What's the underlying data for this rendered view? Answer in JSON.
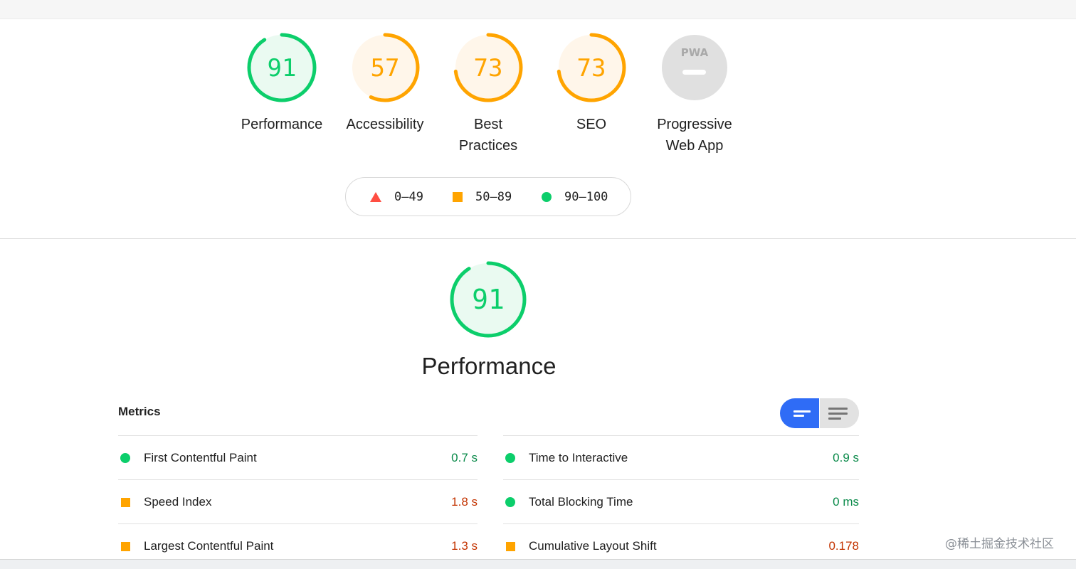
{
  "categories": [
    {
      "id": "performance",
      "score": 91,
      "label": "Performance",
      "rating": "pass"
    },
    {
      "id": "accessibility",
      "score": 57,
      "label": "Accessibility",
      "rating": "average"
    },
    {
      "id": "best-practices",
      "score": 73,
      "label": "Best\nPractices",
      "rating": "average"
    },
    {
      "id": "seo",
      "score": 73,
      "label": "SEO",
      "rating": "average"
    },
    {
      "id": "pwa",
      "score": null,
      "badge": "PWA",
      "label": "Progressive\nWeb App",
      "rating": "na"
    }
  ],
  "legend": {
    "fail": "0–49",
    "average": "50–89",
    "pass": "90–100"
  },
  "performance": {
    "score": 91,
    "title": "Performance"
  },
  "metrics": {
    "title": "Metrics",
    "left": [
      {
        "name": "First Contentful Paint",
        "value": "0.7 s",
        "rating": "pass"
      },
      {
        "name": "Speed Index",
        "value": "1.8 s",
        "rating": "average"
      },
      {
        "name": "Largest Contentful Paint",
        "value": "1.3 s",
        "rating": "average"
      }
    ],
    "right": [
      {
        "name": "Time to Interactive",
        "value": "0.9 s",
        "rating": "pass"
      },
      {
        "name": "Total Blocking Time",
        "value": "0 ms",
        "rating": "pass"
      },
      {
        "name": "Cumulative Layout Shift",
        "value": "0.178",
        "rating": "average"
      }
    ]
  },
  "colors": {
    "pass": "#0cce6b",
    "pass_fill": "#eafaf1",
    "pass_text": "#0a8a4a",
    "average": "#ffa400",
    "average_fill": "#fff6ea",
    "average_text": "#c33300",
    "fail": "#ff4e42",
    "na_fill": "#e0e0e0",
    "toggle_active": "#2f6cf6"
  },
  "watermark": "@稀土掘金技术社区"
}
